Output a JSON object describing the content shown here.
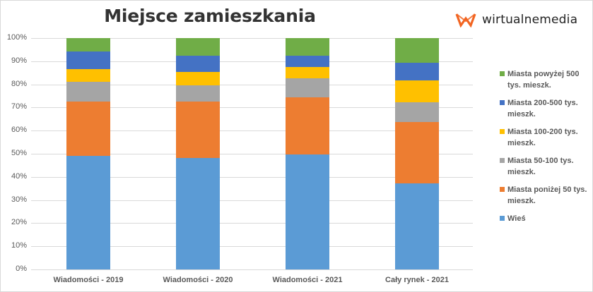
{
  "chart_data": {
    "type": "bar",
    "stacked": true,
    "percent_stacked": true,
    "title": "Miejsce zamieszkania",
    "xlabel": "",
    "ylabel": "",
    "ylim": [
      0,
      100
    ],
    "yticks": [
      "0%",
      "10%",
      "20%",
      "30%",
      "40%",
      "50%",
      "60%",
      "70%",
      "80%",
      "90%",
      "100%"
    ],
    "grid": true,
    "legend_position": "right",
    "categories": [
      "Wiadomości - 2019",
      "Wiadomości - 2020",
      "Wiadomości - 2021",
      "Cały rynek - 2021"
    ],
    "series": [
      {
        "name": "Wieś",
        "color": "#5B9BD5",
        "values": [
          49.0,
          48.1,
          49.6,
          37.1
        ]
      },
      {
        "name": "Miasta poniżej 50 tys. mieszk.",
        "color": "#ED7D31",
        "values": [
          23.6,
          24.5,
          24.9,
          26.7
        ]
      },
      {
        "name": "Miasta 50-100 tys. mieszk.",
        "color": "#A5A5A5",
        "values": [
          8.4,
          7.1,
          8.1,
          8.5
        ]
      },
      {
        "name": "Miasta 100-200 tys. mieszk.",
        "color": "#FFC000",
        "values": [
          5.7,
          5.8,
          4.9,
          9.5
        ]
      },
      {
        "name": "Miasta 200-500 tys. mieszk.",
        "color": "#4472C4",
        "values": [
          7.5,
          6.9,
          4.9,
          7.6
        ]
      },
      {
        "name": "Miasta powyżej 500 tys. mieszk.",
        "color": "#70AD47",
        "values": [
          5.8,
          7.6,
          7.6,
          10.6
        ]
      }
    ]
  },
  "logo": {
    "text": "wirtualnemedia",
    "mark_color": "#F26522"
  },
  "legend": {
    "items": [
      {
        "label": "Miasta powyżej 500 tys. mieszk.",
        "color": "#70AD47"
      },
      {
        "label": "Miasta 200-500 tys. mieszk.",
        "color": "#4472C4"
      },
      {
        "label": "Miasta 100-200 tys. mieszk.",
        "color": "#FFC000"
      },
      {
        "label": "Miasta 50-100 tys. mieszk.",
        "color": "#A5A5A5"
      },
      {
        "label": "Miasta poniżej 50 tys. mieszk.",
        "color": "#ED7D31"
      },
      {
        "label": "Wieś",
        "color": "#5B9BD5"
      }
    ]
  }
}
